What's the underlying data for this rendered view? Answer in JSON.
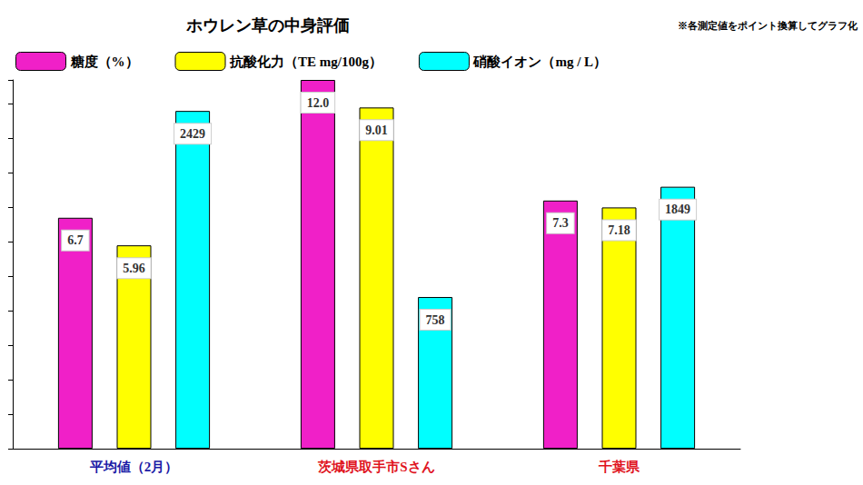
{
  "chart_data": {
    "type": "bar",
    "title": "ホウレン草の中身評価",
    "annotations": [
      "※各測定値をポイント換算してグラフ化"
    ],
    "categories": [
      "平均値（2月）",
      "茨城県取手市Sさん",
      "千葉県"
    ],
    "series": [
      {
        "name": "糖度（%）",
        "color": "#f020c8",
        "values": [
          6.7,
          10.7,
          7.2
        ],
        "measured_labels": [
          "6.7",
          "12.0",
          "7.3"
        ]
      },
      {
        "name": "抗酸化力（TE mg/100g）",
        "color": "#ffff00",
        "values": [
          5.9,
          9.9,
          7.0
        ],
        "measured_labels": [
          "5.96",
          "9.01",
          "7.18"
        ]
      },
      {
        "name": "硝酸イオン（mg / L）",
        "color": "#00ffff",
        "values": [
          9.8,
          4.4,
          7.6
        ],
        "measured_labels": [
          "2429",
          "758",
          "1849"
        ]
      }
    ],
    "ylim": [
      0,
      10.7
    ],
    "yticks": [
      0,
      1,
      2,
      3,
      4,
      5,
      6,
      7,
      8,
      9,
      10
    ],
    "grid": false,
    "legend": "top",
    "tick_labels": "x"
  }
}
